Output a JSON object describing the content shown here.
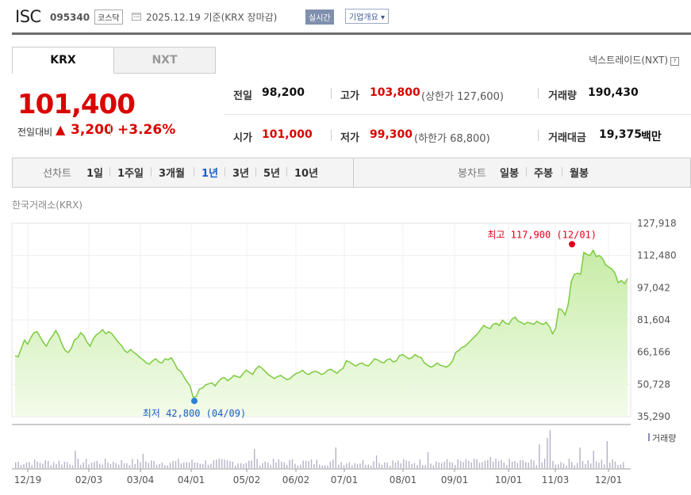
{
  "header": {
    "company_name": "ISC",
    "company_code": "095340",
    "market": "코스닥",
    "date_text": "2025.12.19  기준(KRX 장마감)",
    "realtime_label": "실시간",
    "overview_label": "기업개요 ▾"
  },
  "tabs": [
    {
      "label": "KRX",
      "active": true
    },
    {
      "label": "NXT",
      "active": false
    }
  ],
  "nxt_link": "넥스트레이드(NXT)",
  "price": {
    "current": "101,400",
    "change_label": "전일대비",
    "change_arrow": "▲",
    "change_value": "3,200",
    "change_rate": "+3.26%"
  },
  "stats": {
    "prev_close": {
      "label": "전일",
      "value": "98,200"
    },
    "high": {
      "label": "고가",
      "value": "103,800",
      "sub": "(상한가 127,600)"
    },
    "volume": {
      "label": "거래량",
      "value": "190,430"
    },
    "open": {
      "label": "시가",
      "value": "101,000"
    },
    "low": {
      "label": "저가",
      "value": "99,300",
      "sub": "(하한가 68,800)"
    },
    "trade_value": {
      "label": "거래대금",
      "value": "19,375",
      "unit": "백만"
    }
  },
  "period_bar": {
    "line_label": "선차트",
    "line_periods": [
      "1일",
      "1주일",
      "3개월",
      "1년",
      "3년",
      "5년",
      "10년"
    ],
    "active_period": "1년",
    "candle_label": "봉차트",
    "candle_periods": [
      "일봉",
      "주봉",
      "월봉"
    ]
  },
  "exchange_label": "한국거래소(KRX)",
  "colors": {
    "up": "#d90400",
    "down": "#1a5cc8",
    "line": "#7ccb3f",
    "fill_top": "#c6eca6",
    "fill_bottom": "#f3fbea",
    "volume_bar": "#b2b2c8"
  },
  "chart_data": {
    "type": "area",
    "title": "",
    "y_ticks": [
      "127,918",
      "112,480",
      "97,042",
      "81,604",
      "66,166",
      "50,728",
      "35,290"
    ],
    "ylim": [
      35290,
      127918
    ],
    "x_ticks": [
      "12/19",
      "02/03",
      "03/04",
      "04/01",
      "05/02",
      "06/02",
      "07/01",
      "08/01",
      "09/01",
      "10/01",
      "11/03",
      "12/01"
    ],
    "max_annotation": "최고 117,900 (12/01)",
    "min_annotation": "최저 42,800 (04/09)",
    "max_value": 117900,
    "min_value": 42800,
    "volume_legend": "거래량",
    "grid": true,
    "series": [
      {
        "name": "",
        "values": [
          64500,
          64000,
          68000,
          72000,
          70000,
          73000,
          75500,
          76000,
          73500,
          71000,
          69000,
          72000,
          74000,
          76500,
          74000,
          70000,
          67000,
          66000,
          68000,
          72000,
          73000,
          75500,
          74000,
          71000,
          69000,
          72500,
          74500,
          75500,
          77000,
          75000,
          76000,
          75000,
          73000,
          71000,
          69500,
          67000,
          66000,
          67500,
          66000,
          65000,
          63500,
          62500,
          61000,
          60500,
          62000,
          63000,
          61500,
          61000,
          63000,
          62500,
          63500,
          61000,
          58000,
          57000,
          54500,
          52000,
          50000,
          44500,
          45000,
          48500,
          49000,
          50500,
          51000,
          51500,
          50000,
          52000,
          53500,
          54000,
          52500,
          53500,
          55000,
          54500,
          54000,
          56000,
          57500,
          56500,
          55500,
          58000,
          59500,
          58500,
          57000,
          55500,
          54500,
          53500,
          54500,
          55000,
          54000,
          53000,
          53500,
          55000,
          56000,
          56500,
          57500,
          56000,
          55500,
          56500,
          57000,
          56500,
          55500,
          56000,
          57500,
          58000,
          57000,
          56000,
          57500,
          58500,
          62000,
          61500,
          60500,
          59500,
          60500,
          61000,
          60000,
          59500,
          61000,
          63000,
          62500,
          61500,
          61000,
          62500,
          63000,
          61500,
          62000,
          64500,
          65000,
          64000,
          63000,
          63500,
          65000,
          64000,
          63500,
          61000,
          60000,
          59000,
          59500,
          61000,
          60000,
          59500,
          59000,
          60000,
          62000,
          66000,
          67000,
          68500,
          69000,
          70500,
          72000,
          73500,
          75000,
          77000,
          79000,
          78000,
          77500,
          79500,
          80000,
          79000,
          81500,
          80000,
          79500,
          82000,
          83000,
          81000,
          80500,
          79500,
          80500,
          80000,
          79500,
          81000,
          80000,
          79500,
          80500,
          78500,
          75000,
          77500,
          87000,
          86500,
          84000,
          89000,
          100000,
          103500,
          104000,
          103500,
          114000,
          113000,
          112500,
          115000,
          112000,
          112500,
          111000,
          108000,
          107000,
          106000,
          104000,
          99500,
          100500,
          99000,
          101400
        ]
      }
    ]
  }
}
